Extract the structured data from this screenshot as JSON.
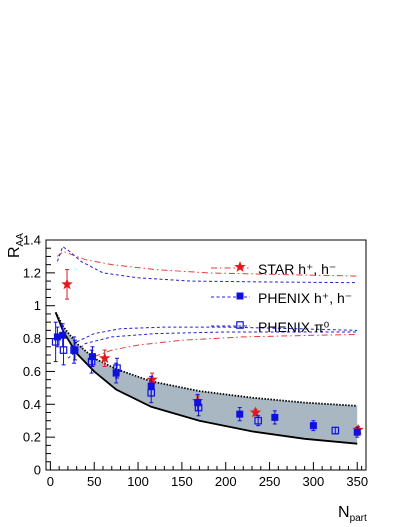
{
  "chart_data": {
    "type": "scatter",
    "title": "",
    "xlabel": "N",
    "xlabel_sub": "part",
    "ylabel": "R",
    "ylabel_sub": "AA",
    "xlim": [
      -5,
      360
    ],
    "ylim": [
      0,
      1.4
    ],
    "xticks": [
      0,
      50,
      100,
      150,
      200,
      250,
      300,
      350
    ],
    "yticks": [
      0,
      0.2,
      0.4,
      0.6,
      0.8,
      1.0,
      1.2,
      1.4
    ],
    "ytick_labels": [
      "0",
      "0.2",
      "0.4",
      "0.6",
      "0.8",
      "1",
      "1.2",
      "1.4"
    ],
    "grid": false,
    "legend_position": "top-right",
    "legend": [
      {
        "key": "star",
        "label": "STAR  h⁺, h⁻",
        "line_color": "#e83a3a",
        "line_style": "dashdot"
      },
      {
        "key": "phenix_h",
        "label": "PHENIX  h⁺, h⁻",
        "line_color": "#2222cc",
        "line_style": "dashed"
      },
      {
        "key": "phenix_pi0",
        "label": "PHENIX  π⁰",
        "line_color": "#2222cc",
        "line_style": "dashed"
      }
    ],
    "series": [
      {
        "name": "STAR  h⁺, h⁻",
        "marker": "star",
        "color": "#e8171f",
        "points": [
          {
            "x": 19,
            "y": 1.13,
            "err": 0.09
          },
          {
            "x": 62,
            "y": 0.68,
            "err": 0.05
          },
          {
            "x": 116,
            "y": 0.55,
            "err": 0.04
          },
          {
            "x": 168,
            "y": 0.42,
            "err": 0.03
          },
          {
            "x": 234,
            "y": 0.35,
            "err": 0.02
          },
          {
            "x": 351,
            "y": 0.245,
            "err": 0.02
          }
        ]
      },
      {
        "name": "PHENIX  h⁺, h⁻",
        "marker": "square-filled",
        "color": "#1010dd",
        "points": [
          {
            "x": 8,
            "y": 0.81,
            "err": 0.06
          },
          {
            "x": 14,
            "y": 0.82,
            "err": 0.07
          },
          {
            "x": 28,
            "y": 0.73,
            "err": 0.06
          },
          {
            "x": 48,
            "y": 0.69,
            "err": 0.06
          },
          {
            "x": 75,
            "y": 0.59,
            "err": 0.06
          },
          {
            "x": 115,
            "y": 0.51,
            "err": 0.06
          },
          {
            "x": 168,
            "y": 0.41,
            "err": 0.05
          },
          {
            "x": 216,
            "y": 0.34,
            "err": 0.04
          },
          {
            "x": 256,
            "y": 0.32,
            "err": 0.04
          },
          {
            "x": 300,
            "y": 0.27,
            "err": 0.03
          },
          {
            "x": 350,
            "y": 0.23,
            "err": 0.03
          }
        ]
      },
      {
        "name": "PHENIX  π⁰",
        "marker": "square-open",
        "color": "#1010dd",
        "points": [
          {
            "x": 6,
            "y": 0.78,
            "err": 0.12
          },
          {
            "x": 15,
            "y": 0.73,
            "err": 0.09
          },
          {
            "x": 27,
            "y": 0.73,
            "err": 0.08
          },
          {
            "x": 47,
            "y": 0.66,
            "err": 0.07
          },
          {
            "x": 76,
            "y": 0.62,
            "err": 0.06
          },
          {
            "x": 115,
            "y": 0.47,
            "err": 0.06
          },
          {
            "x": 169,
            "y": 0.38,
            "err": 0.05
          },
          {
            "x": 237,
            "y": 0.3,
            "err": 0.03
          },
          {
            "x": 325,
            "y": 0.24,
            "err": 0.02
          }
        ]
      }
    ],
    "band": {
      "fill": "#a9b7c2",
      "upper_line_style": "dotted",
      "lower_line_style": "solid",
      "upper": [
        [
          6,
          0.96
        ],
        [
          15,
          0.87
        ],
        [
          30,
          0.77
        ],
        [
          50,
          0.68
        ],
        [
          75,
          0.615
        ],
        [
          115,
          0.54
        ],
        [
          170,
          0.48
        ],
        [
          230,
          0.44
        ],
        [
          290,
          0.41
        ],
        [
          350,
          0.39
        ]
      ],
      "lower": [
        [
          6,
          0.96
        ],
        [
          15,
          0.84
        ],
        [
          30,
          0.71
        ],
        [
          50,
          0.6
        ],
        [
          75,
          0.49
        ],
        [
          115,
          0.385
        ],
        [
          170,
          0.3
        ],
        [
          230,
          0.235
        ],
        [
          290,
          0.19
        ],
        [
          350,
          0.16
        ]
      ]
    },
    "reference_curves": [
      {
        "color": "#e83a3a",
        "style": "dashdot",
        "points": [
          [
            8,
            1.3
          ],
          [
            15,
            1.33
          ],
          [
            25,
            1.31
          ],
          [
            40,
            1.28
          ],
          [
            70,
            1.25
          ],
          [
            120,
            1.22
          ],
          [
            180,
            1.2
          ],
          [
            260,
            1.19
          ],
          [
            350,
            1.18
          ]
        ]
      },
      {
        "color": "#e83a3a",
        "style": "dashdot",
        "points": [
          [
            50,
            0.69
          ],
          [
            70,
            0.73
          ],
          [
            100,
            0.76
          ],
          [
            150,
            0.79
          ],
          [
            220,
            0.81
          ],
          [
            300,
            0.82
          ],
          [
            350,
            0.825
          ]
        ]
      },
      {
        "color": "#2222cc",
        "style": "dashed",
        "points": [
          [
            8,
            1.27
          ],
          [
            14,
            1.36
          ],
          [
            22,
            1.33
          ],
          [
            35,
            1.27
          ],
          [
            60,
            1.2
          ],
          [
            100,
            1.17
          ],
          [
            160,
            1.15
          ],
          [
            240,
            1.145
          ],
          [
            350,
            1.14
          ]
        ]
      },
      {
        "color": "#2222cc",
        "style": "dashed",
        "points": [
          [
            30,
            0.78
          ],
          [
            50,
            0.83
          ],
          [
            80,
            0.86
          ],
          [
            130,
            0.87
          ],
          [
            200,
            0.87
          ],
          [
            280,
            0.86
          ],
          [
            350,
            0.85
          ]
        ]
      },
      {
        "color": "#2222cc",
        "style": "dashed",
        "points": [
          [
            20,
            0.68
          ],
          [
            40,
            0.77
          ],
          [
            70,
            0.81
          ],
          [
            120,
            0.83
          ],
          [
            200,
            0.84
          ],
          [
            350,
            0.84
          ]
        ]
      }
    ]
  }
}
